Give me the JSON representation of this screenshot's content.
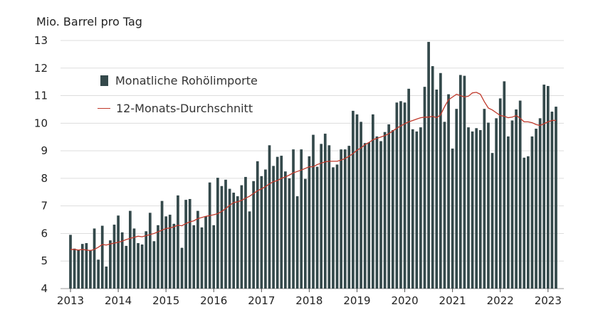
{
  "chart_data": {
    "type": "bar",
    "ylabel": "Mio. Barrel pro Tag",
    "ylim": [
      4,
      13
    ],
    "y_ticks": [
      "4",
      "5",
      "6",
      "7",
      "8",
      "9",
      "10",
      "11",
      "12",
      "13"
    ],
    "x_ticks": [
      "2013",
      "2014",
      "2015",
      "2016",
      "2017",
      "2018",
      "2019",
      "2020",
      "2021",
      "2022",
      "2023"
    ],
    "grid": true,
    "legend_position": "top-left",
    "colors": {
      "bars": "#34494b",
      "line": "#c0392b",
      "grid": "#dddddd"
    },
    "start_month": "2013-01",
    "series": [
      {
        "name": "Monatliche Rohölimporte",
        "kind": "bar",
        "values": [
          5.95,
          5.45,
          5.4,
          5.62,
          5.65,
          5.4,
          6.18,
          5.05,
          6.28,
          4.8,
          5.75,
          6.32,
          6.65,
          6.04,
          5.55,
          6.82,
          6.18,
          5.65,
          5.6,
          6.08,
          6.75,
          5.72,
          6.3,
          7.18,
          6.62,
          6.68,
          6.35,
          7.38,
          5.48,
          7.22,
          7.25,
          6.3,
          6.82,
          6.22,
          6.62,
          7.85,
          6.3,
          8.02,
          7.72,
          7.95,
          7.62,
          7.48,
          7.35,
          7.75,
          8.05,
          6.8,
          7.9,
          8.62,
          8.08,
          8.32,
          9.2,
          8.45,
          8.78,
          8.82,
          8.25,
          8.0,
          9.05,
          7.35,
          9.05,
          7.98,
          8.8,
          9.58,
          8.42,
          9.25,
          9.62,
          9.2,
          8.4,
          8.5,
          9.05,
          9.05,
          9.18,
          10.45,
          10.32,
          10.05,
          9.28,
          9.3,
          10.32,
          9.52,
          9.35,
          9.68,
          9.96,
          9.75,
          10.75,
          10.8,
          10.75,
          11.25,
          9.78,
          9.7,
          9.85,
          11.32,
          12.95,
          12.07,
          11.22,
          11.82,
          10.05,
          11.05,
          9.08,
          10.52,
          11.75,
          11.72,
          9.85,
          9.7,
          9.82,
          9.75,
          10.52,
          10.02,
          8.92,
          10.18,
          10.9,
          11.52,
          9.52,
          10.1,
          10.5,
          10.82,
          8.75,
          8.8,
          9.52,
          9.8,
          10.18,
          11.4,
          11.35,
          10.42,
          10.6
        ]
      },
      {
        "name": "12-Monats-Durchschnitt",
        "kind": "line",
        "values": [
          5.42,
          5.42,
          5.4,
          5.42,
          5.4,
          5.38,
          5.42,
          5.5,
          5.6,
          5.58,
          5.62,
          5.65,
          5.68,
          5.72,
          5.78,
          5.82,
          5.86,
          5.9,
          5.88,
          5.92,
          5.96,
          6.0,
          6.06,
          6.12,
          6.18,
          6.2,
          6.24,
          6.3,
          6.28,
          6.36,
          6.42,
          6.46,
          6.54,
          6.58,
          6.62,
          6.65,
          6.68,
          6.72,
          6.8,
          6.9,
          7.02,
          7.12,
          7.15,
          7.2,
          7.28,
          7.35,
          7.45,
          7.55,
          7.62,
          7.7,
          7.8,
          7.88,
          7.92,
          8.0,
          8.05,
          8.12,
          8.2,
          8.25,
          8.3,
          8.36,
          8.42,
          8.42,
          8.5,
          8.55,
          8.6,
          8.62,
          8.62,
          8.62,
          8.66,
          8.72,
          8.8,
          8.9,
          9.02,
          9.1,
          9.22,
          9.3,
          9.4,
          9.45,
          9.5,
          9.55,
          9.62,
          9.72,
          9.82,
          9.9,
          9.98,
          10.05,
          10.1,
          10.15,
          10.2,
          10.22,
          10.22,
          10.25,
          10.2,
          10.3,
          10.6,
          10.85,
          10.95,
          11.05,
          11.0,
          10.95,
          10.98,
          11.1,
          11.12,
          11.05,
          10.78,
          10.55,
          10.48,
          10.38,
          10.28,
          10.25,
          10.2,
          10.22,
          10.28,
          10.18,
          10.05,
          10.05,
          10.02,
          9.95,
          9.92,
          9.98,
          10.05,
          10.1,
          10.1
        ]
      }
    ]
  }
}
